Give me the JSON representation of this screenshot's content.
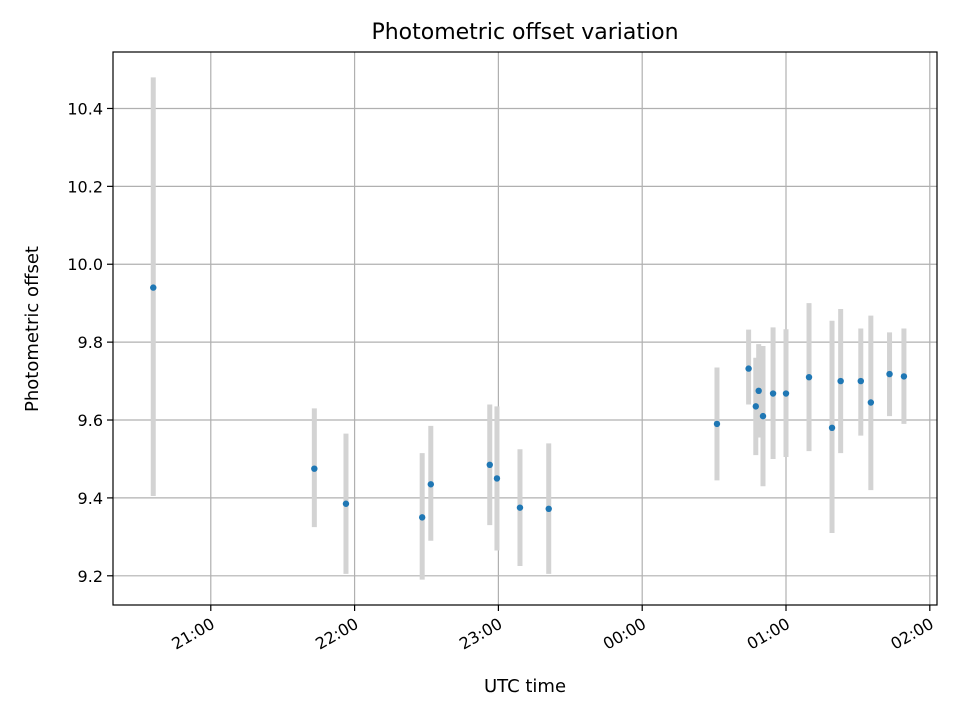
{
  "chart_data": {
    "type": "scatter",
    "title": "Photometric offset variation",
    "xlabel": "UTC time",
    "ylabel": "Photometric offset",
    "x_unit": "UTC time (hours, values past midnight written as 24+)",
    "xlim": [
      20.32,
      26.05
    ],
    "ylim": [
      9.125,
      10.545
    ],
    "grid": true,
    "legend": "none",
    "x_ticks": [
      {
        "value": 21,
        "label": "21:00"
      },
      {
        "value": 22,
        "label": "22:00"
      },
      {
        "value": 23,
        "label": "23:00"
      },
      {
        "value": 24,
        "label": "00:00"
      },
      {
        "value": 25,
        "label": "01:00"
      },
      {
        "value": 26,
        "label": "02:00"
      }
    ],
    "y_ticks": [
      {
        "value": 9.2,
        "label": "9.2"
      },
      {
        "value": 9.4,
        "label": "9.4"
      },
      {
        "value": 9.6,
        "label": "9.6"
      },
      {
        "value": 9.8,
        "label": "9.8"
      },
      {
        "value": 10.0,
        "label": "10.0"
      },
      {
        "value": 10.2,
        "label": "10.2"
      },
      {
        "value": 10.4,
        "label": "10.4"
      }
    ],
    "colors": {
      "marker": "#1f77b4",
      "errorbar": "#d3d3d3",
      "grid": "#b0b0b0"
    },
    "points": [
      {
        "x": 20.6,
        "y": 9.94,
        "err_low": 9.405,
        "err_high": 10.48
      },
      {
        "x": 21.72,
        "y": 9.475,
        "err_low": 9.325,
        "err_high": 9.63
      },
      {
        "x": 21.94,
        "y": 9.385,
        "err_low": 9.205,
        "err_high": 9.565
      },
      {
        "x": 22.47,
        "y": 9.35,
        "err_low": 9.19,
        "err_high": 9.515
      },
      {
        "x": 22.53,
        "y": 9.435,
        "err_low": 9.29,
        "err_high": 9.585
      },
      {
        "x": 22.94,
        "y": 9.485,
        "err_low": 9.33,
        "err_high": 9.64
      },
      {
        "x": 22.99,
        "y": 9.45,
        "err_low": 9.265,
        "err_high": 9.635
      },
      {
        "x": 23.15,
        "y": 9.375,
        "err_low": 9.225,
        "err_high": 9.525
      },
      {
        "x": 23.35,
        "y": 9.372,
        "err_low": 9.205,
        "err_high": 9.54
      },
      {
        "x": 24.52,
        "y": 9.59,
        "err_low": 9.445,
        "err_high": 9.735
      },
      {
        "x": 24.74,
        "y": 9.732,
        "err_low": 9.64,
        "err_high": 9.832
      },
      {
        "x": 24.79,
        "y": 9.635,
        "err_low": 9.51,
        "err_high": 9.76
      },
      {
        "x": 24.81,
        "y": 9.675,
        "err_low": 9.555,
        "err_high": 9.795
      },
      {
        "x": 24.84,
        "y": 9.61,
        "err_low": 9.43,
        "err_high": 9.79
      },
      {
        "x": 24.91,
        "y": 9.668,
        "err_low": 9.5,
        "err_high": 9.838
      },
      {
        "x": 25.0,
        "y": 9.668,
        "err_low": 9.505,
        "err_high": 9.833
      },
      {
        "x": 25.16,
        "y": 9.71,
        "err_low": 9.52,
        "err_high": 9.9
      },
      {
        "x": 25.32,
        "y": 9.58,
        "err_low": 9.31,
        "err_high": 9.855
      },
      {
        "x": 25.38,
        "y": 9.7,
        "err_low": 9.515,
        "err_high": 9.885
      },
      {
        "x": 25.52,
        "y": 9.7,
        "err_low": 9.56,
        "err_high": 9.835
      },
      {
        "x": 25.59,
        "y": 9.645,
        "err_low": 9.42,
        "err_high": 9.868
      },
      {
        "x": 25.72,
        "y": 9.718,
        "err_low": 9.61,
        "err_high": 9.825
      },
      {
        "x": 25.82,
        "y": 9.712,
        "err_low": 9.59,
        "err_high": 9.835
      }
    ]
  }
}
